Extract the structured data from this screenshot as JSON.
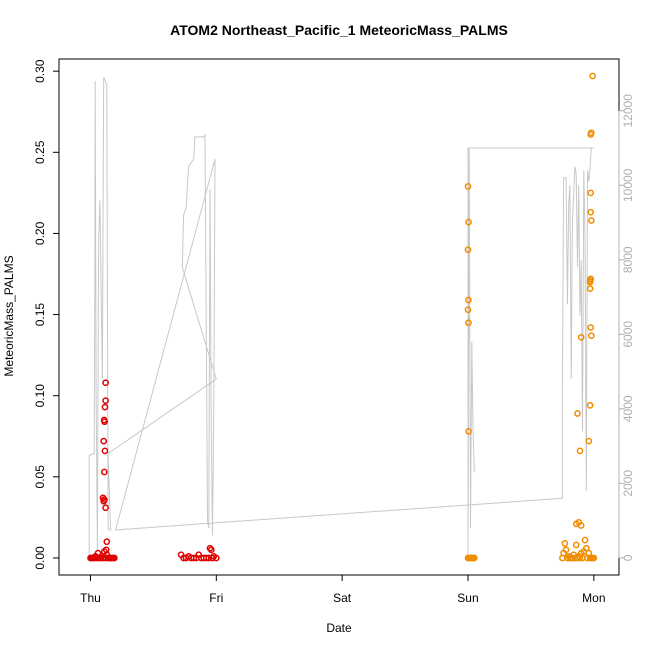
{
  "chart_data": {
    "type": "scatter",
    "title": "ATOM2 Northeast_Pacific_1 MeteoricMass_PALMS",
    "xlabel": "Date",
    "ylabel": "MeteoricMass_PALMS",
    "x_ticks": [
      {
        "value": 0,
        "label": "Thu"
      },
      {
        "value": 1,
        "label": "Fri"
      },
      {
        "value": 2,
        "label": "Sat"
      },
      {
        "value": 3,
        "label": "Sun"
      },
      {
        "value": 4,
        "label": "Mon"
      }
    ],
    "xlim": [
      -0.25,
      4.2
    ],
    "ylim": [
      -0.0105,
      0.3075
    ],
    "y_ticks": [
      0.0,
      0.05,
      0.1,
      0.15,
      0.2,
      0.25,
      0.3
    ],
    "y_tick_labels": [
      "0.00",
      "0.05",
      "0.10",
      "0.15",
      "0.20",
      "0.25",
      "0.30"
    ],
    "y2_ticks": [
      0,
      2000,
      4000,
      6000,
      8000,
      10000,
      12000
    ],
    "y2_tick_labels": [
      "0",
      "2000",
      "4000",
      "6000",
      "8000",
      "10000",
      "12000"
    ],
    "y2lim": [
      -460,
      13390
    ],
    "colors": {
      "red_series": "#e00000",
      "orange_series": "#f08c00",
      "altitude_line": "#c8c8c8"
    },
    "series": [
      {
        "color": "#e00000",
        "marker": "open-circle",
        "points": [
          [
            0.0,
            0.0
          ],
          [
            0.01,
            0.0
          ],
          [
            0.02,
            0.0
          ],
          [
            0.03,
            0.0
          ],
          [
            0.04,
            0.001
          ],
          [
            0.05,
            0.0
          ],
          [
            0.06,
            0.003
          ],
          [
            0.07,
            0.0
          ],
          [
            0.08,
            0.0
          ],
          [
            0.09,
            0.001
          ],
          [
            0.1,
            0.0
          ],
          [
            0.11,
            0.004
          ],
          [
            0.12,
            0.0
          ],
          [
            0.13,
            0.002
          ],
          [
            0.14,
            0.0
          ],
          [
            0.15,
            0.0
          ],
          [
            0.16,
            0.0
          ],
          [
            0.17,
            0.0
          ],
          [
            0.18,
            0.0
          ],
          [
            0.19,
            0.0
          ],
          [
            0.1,
            0.037
          ],
          [
            0.105,
            0.035
          ],
          [
            0.11,
            0.036
          ],
          [
            0.12,
            0.031
          ],
          [
            0.11,
            0.053
          ],
          [
            0.115,
            0.066
          ],
          [
            0.105,
            0.072
          ],
          [
            0.112,
            0.084
          ],
          [
            0.108,
            0.085
          ],
          [
            0.115,
            0.093
          ],
          [
            0.12,
            0.097
          ],
          [
            0.12,
            0.108
          ],
          [
            0.13,
            0.01
          ],
          [
            0.125,
            0.005
          ],
          [
            0.72,
            0.002
          ],
          [
            0.74,
            0.0
          ],
          [
            0.76,
            0.0
          ],
          [
            0.78,
            0.001
          ],
          [
            0.8,
            0.0
          ],
          [
            0.82,
            0.0
          ],
          [
            0.84,
            0.0
          ],
          [
            0.86,
            0.002
          ],
          [
            0.88,
            0.0
          ],
          [
            0.9,
            0.0
          ],
          [
            0.92,
            0.0
          ],
          [
            0.94,
            0.0
          ],
          [
            0.95,
            0.006
          ],
          [
            0.96,
            0.005
          ],
          [
            0.97,
            0.0
          ],
          [
            0.98,
            0.001
          ],
          [
            1.0,
            0.0
          ]
        ]
      },
      {
        "color": "#f08c00",
        "marker": "open-circle",
        "points": [
          [
            3.0,
            0.229
          ],
          [
            3.005,
            0.207
          ],
          [
            3.0,
            0.19
          ],
          [
            3.003,
            0.159
          ],
          [
            3.0,
            0.153
          ],
          [
            3.003,
            0.145
          ],
          [
            3.005,
            0.078
          ],
          [
            3.0,
            0.0
          ],
          [
            3.01,
            0.0
          ],
          [
            3.02,
            0.0
          ],
          [
            3.03,
            0.0
          ],
          [
            3.04,
            0.0
          ],
          [
            3.05,
            0.0
          ],
          [
            3.75,
            0.0
          ],
          [
            3.76,
            0.003
          ],
          [
            3.77,
            0.009
          ],
          [
            3.78,
            0.005
          ],
          [
            3.79,
            0.0
          ],
          [
            3.8,
            0.001
          ],
          [
            3.81,
            0.0
          ],
          [
            3.82,
            0.0
          ],
          [
            3.83,
            0.0
          ],
          [
            3.84,
            0.002
          ],
          [
            3.85,
            0.0
          ],
          [
            3.86,
            0.008
          ],
          [
            3.87,
            0.0
          ],
          [
            3.88,
            0.001
          ],
          [
            3.89,
            0.0
          ],
          [
            3.9,
            0.003
          ],
          [
            3.91,
            0.0
          ],
          [
            3.92,
            0.004
          ],
          [
            3.93,
            0.011
          ],
          [
            3.94,
            0.006
          ],
          [
            3.95,
            0.0
          ],
          [
            3.96,
            0.003
          ],
          [
            3.97,
            0.0
          ],
          [
            3.98,
            0.0
          ],
          [
            3.99,
            0.0
          ],
          [
            4.0,
            0.0
          ],
          [
            3.86,
            0.021
          ],
          [
            3.88,
            0.022
          ],
          [
            3.9,
            0.02
          ],
          [
            3.87,
            0.089
          ],
          [
            3.89,
            0.066
          ],
          [
            3.9,
            0.136
          ],
          [
            3.96,
            0.072
          ],
          [
            3.97,
            0.094
          ],
          [
            3.98,
            0.137
          ],
          [
            3.975,
            0.142
          ],
          [
            3.97,
            0.166
          ],
          [
            3.97,
            0.17
          ],
          [
            3.975,
            0.172
          ],
          [
            3.97,
            0.171
          ],
          [
            3.98,
            0.208
          ],
          [
            3.975,
            0.213
          ],
          [
            3.975,
            0.225
          ],
          [
            3.975,
            0.261
          ],
          [
            3.98,
            0.262
          ],
          [
            3.99,
            0.297
          ]
        ]
      }
    ],
    "secondary_line": [
      [
        -0.01,
        0
      ],
      [
        -0.01,
        2750
      ],
      [
        0.03,
        2800
      ],
      [
        0.035,
        8000
      ],
      [
        0.038,
        12800
      ],
      [
        0.045,
        4500
      ],
      [
        0.055,
        200
      ],
      [
        0.065,
        8500
      ],
      [
        0.075,
        9600
      ],
      [
        0.085,
        7000
      ],
      [
        0.095,
        4800
      ],
      [
        0.1,
        9000
      ],
      [
        0.105,
        12900
      ],
      [
        0.13,
        12700
      ],
      [
        0.14,
        800
      ],
      [
        0.15,
        750
      ],
      [
        0.16,
        750
      ],
      [
        0.14,
        2800
      ],
      [
        1.0,
        4800
      ],
      [
        0.73,
        7800
      ],
      [
        0.74,
        9200
      ],
      [
        0.76,
        9400
      ],
      [
        0.78,
        10500
      ],
      [
        0.8,
        10600
      ],
      [
        0.82,
        10700
      ],
      [
        0.83,
        11300
      ],
      [
        0.85,
        11300
      ],
      [
        0.9,
        11300
      ],
      [
        0.91,
        11350
      ],
      [
        0.93,
        1000
      ],
      [
        0.94,
        800
      ],
      [
        0.95,
        9900
      ],
      [
        0.96,
        3500
      ],
      [
        0.97,
        600
      ],
      [
        0.98,
        4000
      ],
      [
        0.99,
        10700
      ],
      [
        0.2,
        750
      ],
      [
        3.75,
        1600
      ],
      [
        3.75,
        4500
      ],
      [
        3.76,
        10200
      ],
      [
        3.78,
        10200
      ],
      [
        3.79,
        6800
      ],
      [
        3.8,
        9500
      ],
      [
        3.81,
        10000
      ],
      [
        3.82,
        4800
      ],
      [
        3.83,
        9000
      ],
      [
        3.85,
        10500
      ],
      [
        3.86,
        10300
      ],
      [
        3.87,
        7800
      ],
      [
        3.88,
        10000
      ],
      [
        3.89,
        6500
      ],
      [
        3.9,
        8000
      ],
      [
        3.91,
        3400
      ],
      [
        3.92,
        10400
      ],
      [
        3.93,
        8600
      ],
      [
        3.94,
        1800
      ],
      [
        3.95,
        10400
      ],
      [
        3.96,
        10100
      ],
      [
        3.97,
        10500
      ],
      [
        3.98,
        11000
      ],
      [
        4.0,
        11000
      ],
      [
        3.0,
        11000
      ],
      [
        3.0,
        0
      ],
      [
        3.01,
        11000
      ],
      [
        3.02,
        800
      ],
      [
        3.03,
        5800
      ],
      [
        3.04,
        3500
      ],
      [
        3.05,
        2300
      ]
    ]
  }
}
